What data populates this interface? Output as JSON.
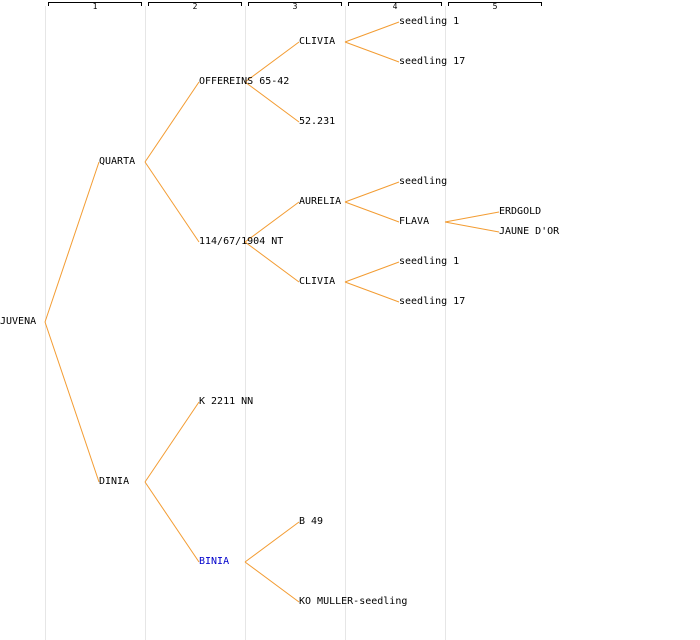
{
  "generations": [
    "1",
    "2",
    "3",
    "4",
    "5"
  ],
  "colors": {
    "link": "#f39c32",
    "highlight": "#0000cc",
    "column_line": "#e6e6e6"
  },
  "nodes": [
    {
      "id": "n0",
      "label": "JUVENA",
      "gen": 0,
      "row": 8
    },
    {
      "id": "n1",
      "label": "QUARTA",
      "gen": 1,
      "row": 4
    },
    {
      "id": "n2",
      "label": "DINIA",
      "gen": 1,
      "row": 12
    },
    {
      "id": "n3",
      "label": "OFFEREINS 65-42",
      "gen": 2,
      "row": 2
    },
    {
      "id": "n4",
      "label": "114/67/1904 NT",
      "gen": 2,
      "row": 6
    },
    {
      "id": "n5",
      "label": "K 2211 NN",
      "gen": 2,
      "row": 10
    },
    {
      "id": "n6",
      "label": "BINIA",
      "gen": 2,
      "row": 14,
      "highlight": true
    },
    {
      "id": "n7",
      "label": "CLIVIA",
      "gen": 3,
      "row": 1
    },
    {
      "id": "n8",
      "label": "52.231",
      "gen": 3,
      "row": 3
    },
    {
      "id": "n9",
      "label": "AURELIA",
      "gen": 3,
      "row": 5
    },
    {
      "id": "n10",
      "label": "CLIVIA",
      "gen": 3,
      "row": 7
    },
    {
      "id": "n11",
      "label": "B 49",
      "gen": 3,
      "row": 13
    },
    {
      "id": "n12",
      "label": "KO MULLER-seedling",
      "gen": 3,
      "row": 15
    },
    {
      "id": "n13",
      "label": "seedling 1",
      "gen": 4,
      "row": 0.5
    },
    {
      "id": "n14",
      "label": "seedling 17",
      "gen": 4,
      "row": 1.5
    },
    {
      "id": "n15",
      "label": "seedling",
      "gen": 4,
      "row": 4.5
    },
    {
      "id": "n16",
      "label": "FLAVA",
      "gen": 4,
      "row": 5.5
    },
    {
      "id": "n17",
      "label": "seedling 1",
      "gen": 4,
      "row": 6.5
    },
    {
      "id": "n18",
      "label": "seedling 17",
      "gen": 4,
      "row": 7.5
    },
    {
      "id": "n19",
      "label": "ERDGOLD",
      "gen": 5,
      "row": 5.25
    },
    {
      "id": "n20",
      "label": "JAUNE D'OR",
      "gen": 5,
      "row": 5.75
    }
  ],
  "edges": [
    [
      "n0",
      "n1"
    ],
    [
      "n0",
      "n2"
    ],
    [
      "n1",
      "n3"
    ],
    [
      "n1",
      "n4"
    ],
    [
      "n2",
      "n5"
    ],
    [
      "n2",
      "n6"
    ],
    [
      "n3",
      "n7"
    ],
    [
      "n3",
      "n8"
    ],
    [
      "n4",
      "n9"
    ],
    [
      "n4",
      "n10"
    ],
    [
      "n6",
      "n11"
    ],
    [
      "n6",
      "n12"
    ],
    [
      "n7",
      "n13"
    ],
    [
      "n7",
      "n14"
    ],
    [
      "n9",
      "n15"
    ],
    [
      "n9",
      "n16"
    ],
    [
      "n10",
      "n17"
    ],
    [
      "n10",
      "n18"
    ],
    [
      "n16",
      "n19"
    ],
    [
      "n16",
      "n20"
    ]
  ]
}
